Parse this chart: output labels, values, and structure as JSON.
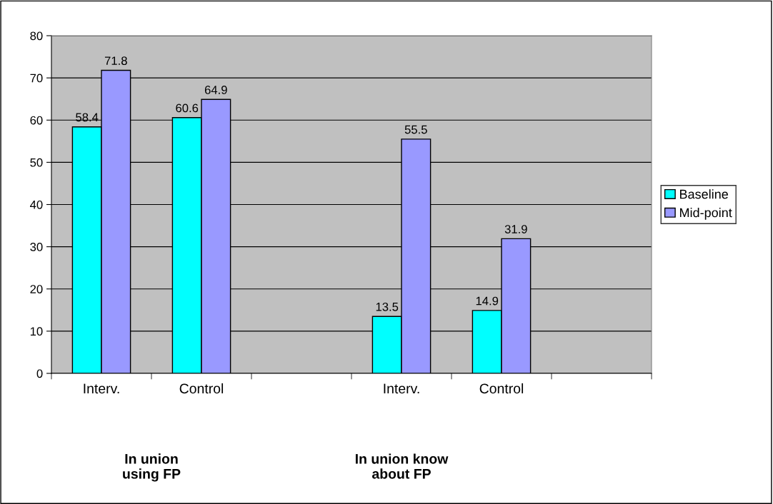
{
  "chart_data": {
    "type": "bar",
    "categories": [
      "Interv.",
      "Control",
      null,
      "Interv.",
      "Control",
      null
    ],
    "series": [
      {
        "name": "Baseline",
        "color": "#00ffff",
        "values": [
          58.4,
          60.6,
          null,
          13.5,
          14.9,
          null
        ]
      },
      {
        "name": "Mid-point",
        "color": "#9999ff",
        "values": [
          71.8,
          64.9,
          null,
          55.5,
          31.9,
          null
        ]
      }
    ],
    "ylim": [
      0,
      80
    ],
    "yticks": [
      0,
      10,
      20,
      30,
      40,
      50,
      60,
      70,
      80
    ],
    "grid": "y",
    "legend": "right",
    "data_labels": true,
    "annotations": [
      "In union\nusing FP",
      "In union know\nabout FP"
    ]
  }
}
